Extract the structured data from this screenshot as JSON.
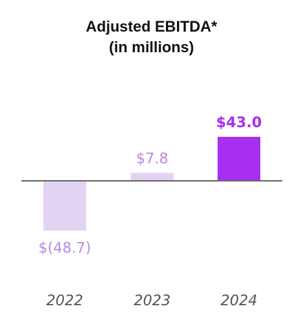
{
  "chart_data": {
    "type": "bar",
    "title": "Adjusted EBITDA*",
    "subtitle": "(in millions)",
    "categories": [
      "2022",
      "2023",
      "2024"
    ],
    "values": [
      -48.7,
      7.8,
      43.0
    ],
    "value_labels": [
      "$(48.7)",
      "$7.8",
      "$43.0"
    ],
    "colors": {
      "bar_light": "#e3d3f3",
      "bar_highlight": "#a72ff0",
      "label_light": "#b98ae0",
      "label_highlight": "#a72ff0",
      "axis_line": "#666666",
      "category_label": "#555555"
    },
    "highlight_index": 2,
    "xlabel": "",
    "ylabel": "",
    "grid": false,
    "legend": "none"
  }
}
